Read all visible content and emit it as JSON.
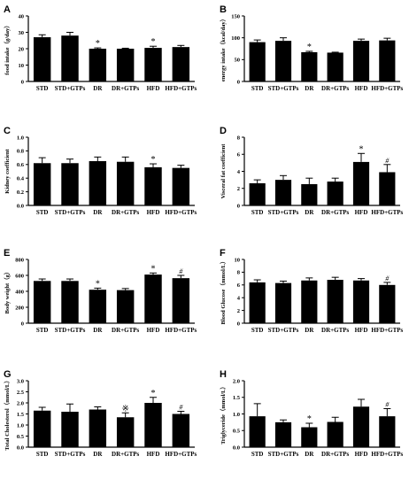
{
  "categories": [
    "STD",
    "STD+GTPs",
    "DR",
    "DR+GTPs",
    "HFD",
    "HFD+GTPs"
  ],
  "chart_data": [
    {
      "type": "bar",
      "panel": "A",
      "ylabel": "food intake（g/day）",
      "ylim": [
        0,
        40
      ],
      "yticks": [
        "0",
        "10",
        "20",
        "30",
        "40"
      ],
      "values": [
        27,
        28,
        20,
        20,
        20.5,
        21
      ],
      "errors": [
        1.5,
        2,
        0.5,
        0.3,
        1,
        1
      ],
      "marks": [
        "",
        "",
        "*",
        "",
        "*",
        ""
      ]
    },
    {
      "type": "bar",
      "panel": "B",
      "ylabel": "energy intake（kcal/day）",
      "ylim": [
        0,
        150
      ],
      "yticks": [
        "0",
        "50",
        "100",
        "150"
      ],
      "values": [
        90,
        93,
        67,
        66,
        93,
        94
      ],
      "errors": [
        5,
        7,
        2,
        1,
        4,
        5
      ],
      "marks": [
        "",
        "",
        "*",
        "",
        "",
        ""
      ]
    },
    {
      "type": "bar",
      "panel": "C",
      "ylabel": "Kidney coefficient",
      "ylim": [
        0,
        1.0
      ],
      "yticks": [
        "0.0",
        "0.2",
        "0.4",
        "0.6",
        "0.8",
        "1.0"
      ],
      "values": [
        0.62,
        0.62,
        0.65,
        0.64,
        0.56,
        0.55
      ],
      "errors": [
        0.08,
        0.06,
        0.06,
        0.07,
        0.05,
        0.04
      ],
      "marks": [
        "",
        "",
        "",
        "",
        "*",
        ""
      ]
    },
    {
      "type": "bar",
      "panel": "D",
      "ylabel": "Visceral fat coefficient",
      "ylim": [
        0,
        8
      ],
      "yticks": [
        "0",
        "2",
        "4",
        "6",
        "8"
      ],
      "values": [
        2.6,
        3.0,
        2.5,
        2.8,
        5.1,
        3.9
      ],
      "errors": [
        0.4,
        0.5,
        0.7,
        0.4,
        1.0,
        0.9
      ],
      "marks": [
        "",
        "",
        "",
        "",
        "*",
        "#"
      ]
    },
    {
      "type": "bar",
      "panel": "E",
      "ylabel": "Body weight（g）",
      "ylim": [
        0,
        800
      ],
      "yticks": [
        "0",
        "200",
        "400",
        "600",
        "800"
      ],
      "values": [
        530,
        530,
        420,
        415,
        610,
        565
      ],
      "errors": [
        25,
        25,
        20,
        20,
        20,
        35
      ],
      "marks": [
        "",
        "",
        "*",
        "",
        "*",
        "#"
      ]
    },
    {
      "type": "bar",
      "panel": "F",
      "ylabel": "Blood Glucose（mmol/L）",
      "ylim": [
        0,
        10
      ],
      "yticks": [
        "0",
        "2",
        "4",
        "6",
        "8",
        "10"
      ],
      "values": [
        6.4,
        6.3,
        6.7,
        6.8,
        6.7,
        6.0
      ],
      "errors": [
        0.4,
        0.3,
        0.4,
        0.4,
        0.3,
        0.4
      ],
      "marks": [
        "",
        "",
        "",
        "",
        "",
        "#"
      ]
    },
    {
      "type": "bar",
      "panel": "G",
      "ylabel": "Total Cholesterol（mmol/L）",
      "ylim": [
        0,
        3.0
      ],
      "yticks": [
        "0.0",
        "0.5",
        "1.0",
        "1.5",
        "2.0",
        "2.5",
        "3.0"
      ],
      "values": [
        1.65,
        1.6,
        1.7,
        1.35,
        2.0,
        1.5
      ],
      "errors": [
        0.15,
        0.35,
        0.12,
        0.2,
        0.25,
        0.12
      ],
      "marks": [
        "",
        "",
        "",
        "※",
        "*",
        "#"
      ]
    },
    {
      "type": "bar",
      "panel": "H",
      "ylabel": "Triglyceride（mmol/L）",
      "ylim": [
        0,
        2.0
      ],
      "yticks": [
        "0.0",
        "0.5",
        "1.0",
        "1.5",
        "2.0"
      ],
      "values": [
        0.93,
        0.75,
        0.6,
        0.76,
        1.22,
        0.93
      ],
      "errors": [
        0.38,
        0.07,
        0.12,
        0.14,
        0.22,
        0.23
      ],
      "marks": [
        "",
        "",
        "*",
        "",
        "",
        "#"
      ]
    }
  ]
}
